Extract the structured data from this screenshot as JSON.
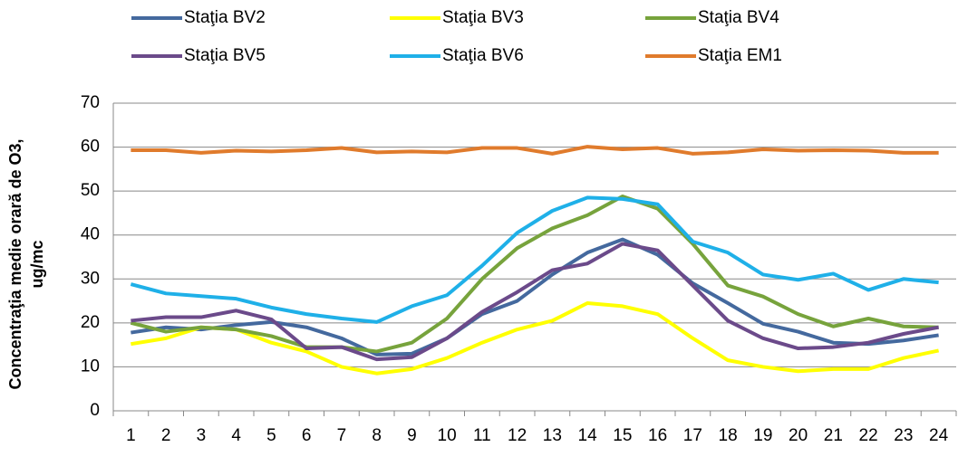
{
  "chart_data": {
    "type": "line",
    "ylabel": [
      "Concentraţia medie orară de O3,",
      "ug/mc"
    ],
    "categories": [
      "1",
      "2",
      "3",
      "4",
      "5",
      "6",
      "7",
      "8",
      "9",
      "10",
      "11",
      "12",
      "13",
      "14",
      "15",
      "16",
      "17",
      "18",
      "19",
      "20",
      "21",
      "22",
      "23",
      "24"
    ],
    "series": [
      {
        "name": "Staţia BV2",
        "color": "#44699e",
        "values": [
          17.8,
          19,
          18.5,
          19.5,
          20.2,
          19,
          16.5,
          12.8,
          13,
          16.5,
          22,
          25,
          31,
          36,
          39,
          35.5,
          29,
          24.5,
          19.8,
          18,
          15.5,
          15.2,
          16,
          17.2
        ]
      },
      {
        "name": "Staţia BV3",
        "color": "#ffff00",
        "values": [
          15.2,
          16.5,
          19,
          18.5,
          15.5,
          13.5,
          10,
          8.5,
          9.5,
          12,
          15.5,
          18.5,
          20.5,
          24.5,
          23.8,
          22,
          16.5,
          11.5,
          10,
          9,
          9.5,
          9.5,
          12,
          13.7
        ]
      },
      {
        "name": "Staţia BV4",
        "color": "#77a33c",
        "values": [
          20,
          18,
          19,
          18.5,
          17,
          14.5,
          14.5,
          13.5,
          15.5,
          21,
          30,
          37,
          41.5,
          44.5,
          48.8,
          46,
          38,
          28.5,
          26,
          22,
          19.2,
          21,
          19.2,
          19
        ]
      },
      {
        "name": "Staţia BV5",
        "color": "#6b4a8a",
        "values": [
          20.5,
          21.3,
          21.3,
          22.8,
          20.8,
          14.2,
          14.5,
          11.7,
          12.2,
          16.5,
          22.5,
          27,
          32,
          33.5,
          38,
          36.5,
          28.5,
          20.5,
          16.5,
          14.2,
          14.5,
          15.5,
          17.5,
          19
        ]
      },
      {
        "name": "Staţia BV6",
        "color": "#1fb0e8",
        "values": [
          28.8,
          26.7,
          26.1,
          25.5,
          23.5,
          22,
          21,
          20.2,
          23.8,
          26.3,
          33,
          40.5,
          45.5,
          48.5,
          48.2,
          47,
          38.5,
          36,
          31,
          29.8,
          31.2,
          27.5,
          30,
          29.2
        ]
      },
      {
        "name": "Staţia EM1",
        "color": "#e07b2c",
        "values": [
          59.3,
          59.3,
          58.7,
          59.2,
          59,
          59.3,
          59.8,
          58.8,
          59,
          58.8,
          59.8,
          59.8,
          58.5,
          60.1,
          59.5,
          59.8,
          58.5,
          58.8,
          59.5,
          59.2,
          59.3,
          59.2,
          58.7,
          58.7
        ]
      }
    ],
    "ylim": [
      0,
      70
    ],
    "yticks": [
      0,
      10,
      20,
      30,
      40,
      50,
      60,
      70
    ],
    "grid": true
  }
}
